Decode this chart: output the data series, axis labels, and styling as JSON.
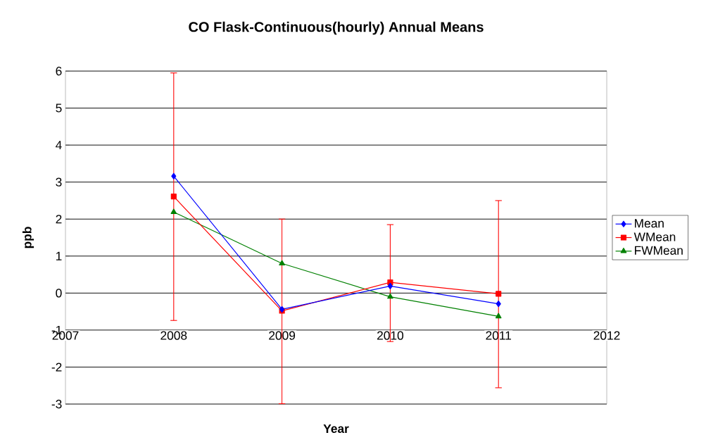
{
  "chart_data": {
    "type": "line",
    "title": "CO Flask-Continuous(hourly) Annual Means",
    "xlabel": "Year",
    "ylabel": "ppb",
    "x": [
      2008,
      2009,
      2010,
      2011
    ],
    "series": [
      {
        "name": "Mean",
        "color": "#0000ff",
        "marker": "diamond",
        "values": [
          3.16,
          -0.44,
          0.19,
          -0.29
        ]
      },
      {
        "name": "WMean",
        "color": "#ff0000",
        "marker": "square",
        "values": [
          2.61,
          -0.48,
          0.29,
          -0.02
        ],
        "errors": [
          [
            -0.74,
            5.95
          ],
          [
            -2.99,
            2.0
          ],
          [
            -1.31,
            1.85
          ],
          [
            -2.56,
            2.5
          ]
        ]
      },
      {
        "name": "FWMean",
        "color": "#008000",
        "marker": "triangle",
        "values": [
          2.19,
          0.8,
          -0.1,
          -0.63
        ]
      }
    ],
    "xlim": [
      2007,
      2012
    ],
    "xticks": [
      2007,
      2008,
      2009,
      2010,
      2011,
      2012
    ],
    "ylim": [
      -3,
      6
    ],
    "yticks": [
      -3,
      -2,
      -1,
      0,
      1,
      2,
      3,
      4,
      5,
      6
    ],
    "grid": "y",
    "legend": "right",
    "line_style": "solid"
  }
}
